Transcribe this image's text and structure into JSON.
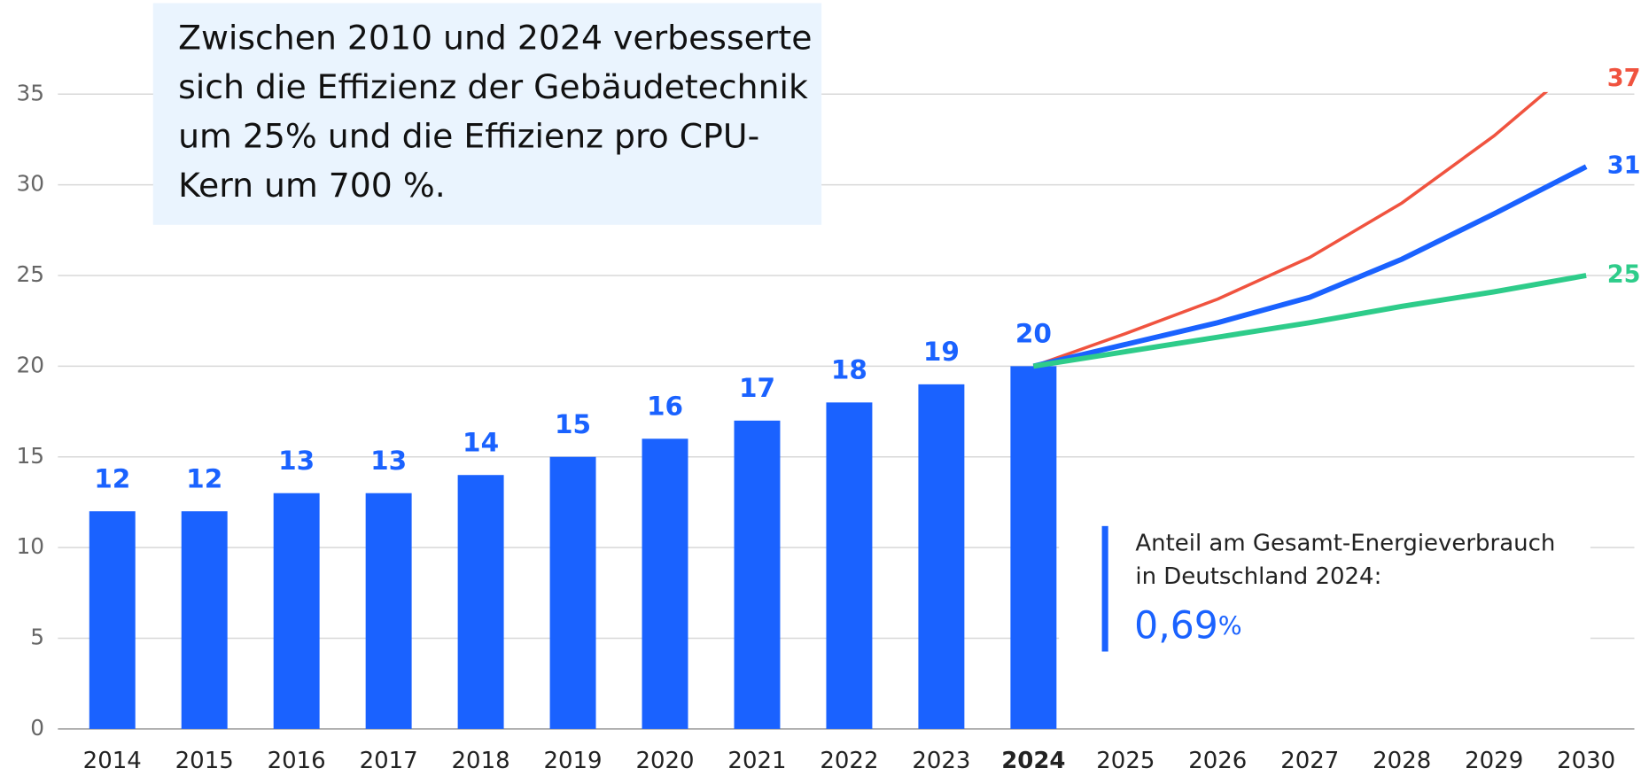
{
  "chart_data": {
    "type": "bar_line",
    "categories": [
      "2014",
      "2015",
      "2016",
      "2017",
      "2018",
      "2019",
      "2020",
      "2021",
      "2022",
      "2023",
      "2024",
      "2025",
      "2026",
      "2027",
      "2028",
      "2029",
      "2030"
    ],
    "values": [
      12,
      12,
      13,
      13,
      14,
      15,
      16,
      17,
      18,
      19,
      20,
      null,
      null,
      null,
      null,
      null,
      null
    ],
    "color": "#1a62ff",
    "series": [
      {
        "color": "#f0533f",
        "values": [
          null,
          null,
          null,
          null,
          null,
          null,
          null,
          null,
          null,
          null,
          20,
          21.8,
          23.7,
          26,
          29,
          32.7,
          37
        ]
      },
      {
        "color": "#1a62ff",
        "values": [
          null,
          null,
          null,
          null,
          null,
          null,
          null,
          null,
          null,
          null,
          20,
          21.2,
          22.4,
          23.8,
          25.9,
          28.4,
          31
        ]
      },
      {
        "color": "#2ecc8a",
        "values": [
          null,
          null,
          null,
          null,
          null,
          null,
          null,
          null,
          null,
          null,
          20,
          20.8,
          21.6,
          22.4,
          23.3,
          24.1,
          25
        ]
      }
    ],
    "ylim": [
      0,
      35
    ],
    "yticks": [
      0,
      5,
      10,
      15,
      20,
      25,
      30,
      35
    ],
    "grid": true,
    "annotation": [
      "Zwischen 2010 und 2024 verbesserte",
      "sich die Effizienz der Gebäudetechnik",
      "um 25% und die Effizienz pro CPU-",
      "Kern um 700 %."
    ],
    "info": [
      "Anteil am Gesamt-Energieverbrauch",
      "in Deutschland 2024:"
    ],
    "share": "0,69",
    "share_unit": "%"
  }
}
